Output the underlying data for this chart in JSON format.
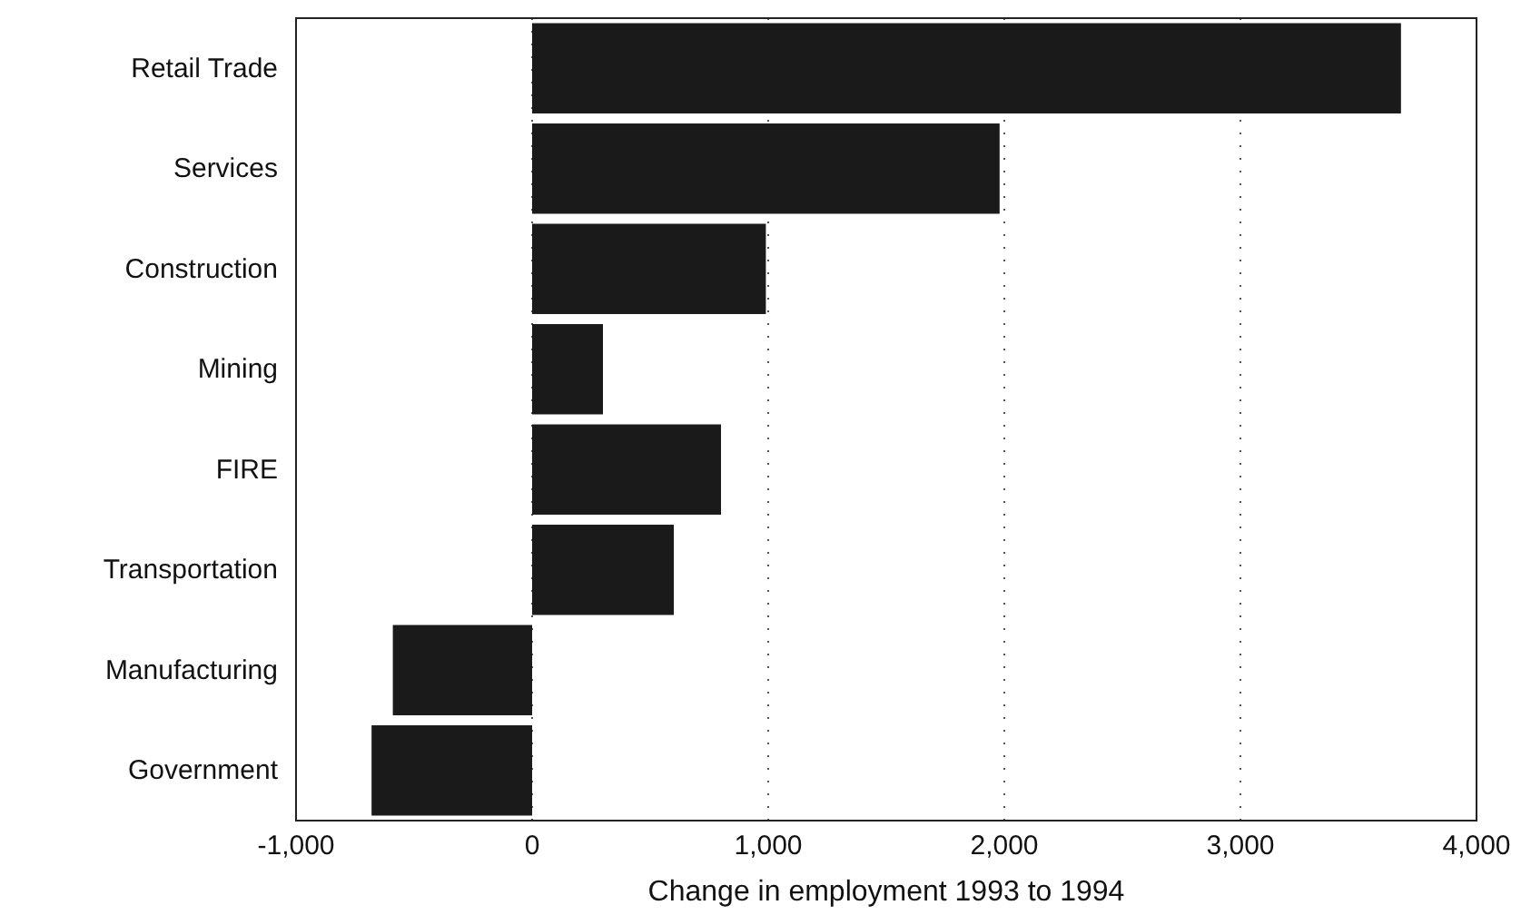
{
  "chart_data": {
    "type": "bar",
    "orientation": "horizontal",
    "xlabel": "Change in employment 1993 to 1994",
    "categories": [
      "Retail Trade",
      "Services",
      "Construction",
      "Mining",
      "FIRE",
      "Transportation",
      "Manufacturing",
      "Government"
    ],
    "values": [
      3680,
      1980,
      990,
      300,
      800,
      600,
      -590,
      -680
    ],
    "color": "#1a1a1a",
    "xlim": [
      -1000,
      4000
    ],
    "xticks": [
      {
        "value": -1000,
        "label": "-1,000"
      },
      0,
      {
        "value": 1000,
        "label": "1,000"
      },
      {
        "value": 2000,
        "label": "2,000"
      },
      {
        "value": 3000,
        "label": "3,000"
      },
      {
        "value": 4000,
        "label": "4,000"
      }
    ],
    "grid": "x"
  }
}
